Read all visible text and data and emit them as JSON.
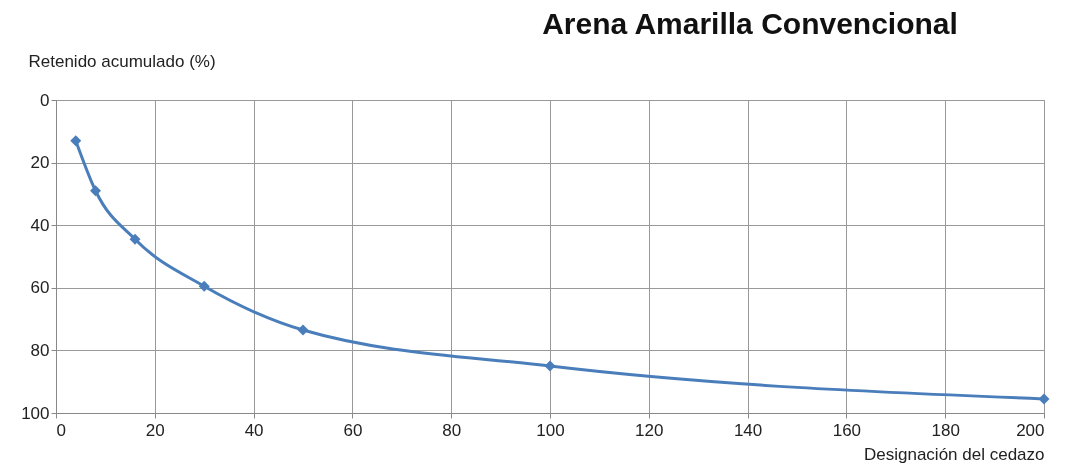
{
  "chart_data": {
    "type": "line",
    "title": "Arena Amarilla Convencional",
    "xlabel": "Designación del cedazo",
    "ylabel": "Retenido acumulado  (%)",
    "x": [
      4,
      8,
      16,
      30,
      50,
      100,
      200
    ],
    "series": [
      {
        "color": "#4a7ebb",
        "values": [
          13,
          29,
          44.5,
          59.5,
          73.5,
          85,
          95.5
        ]
      }
    ],
    "xlim": [
      0,
      200
    ],
    "xticks": [
      0,
      20,
      40,
      60,
      80,
      100,
      120,
      140,
      160,
      180,
      200
    ],
    "ylim": [
      100,
      0
    ],
    "yticks": [
      0,
      20,
      40,
      60,
      80,
      100
    ],
    "grid": true,
    "marker": "diamond",
    "line_style": "solid"
  }
}
